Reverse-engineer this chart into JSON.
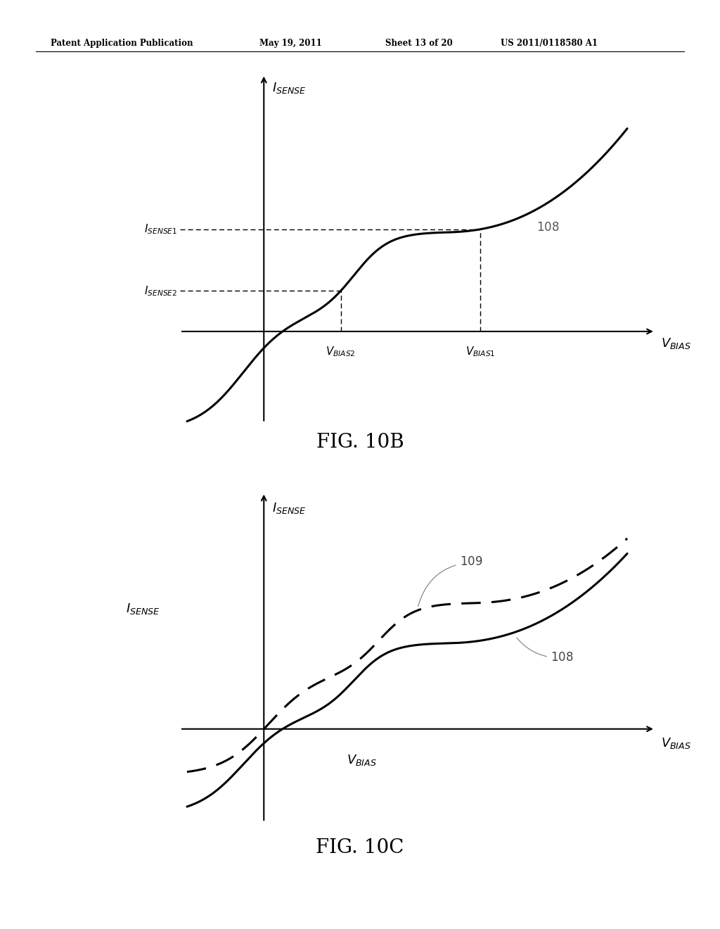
{
  "bg_color": "#ffffff",
  "header_text": "Patent Application Publication",
  "header_date": "May 19, 2011",
  "header_sheet": "Sheet 13 of 20",
  "header_patent": "US 2011/0118580 A1",
  "fig10b_title": "FIG. 10B",
  "fig10c_title": "FIG. 10C",
  "curve_color": "#000000",
  "dashed_color": "#000000"
}
